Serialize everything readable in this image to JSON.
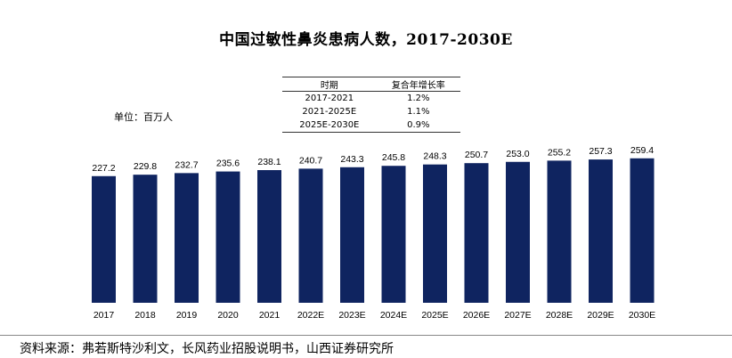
{
  "title": "中国过敏性鼻炎患病人数，2017-2030E",
  "unit_label": "单位：百万人",
  "cagr_table": {
    "headers": [
      "时期",
      "复合年增长率"
    ],
    "rows": [
      {
        "period": "2017-2021",
        "rate": "1.2%"
      },
      {
        "period": "2021-2025E",
        "rate": "1.1%"
      },
      {
        "period": "2025E-2030E",
        "rate": "0.9%"
      }
    ]
  },
  "chart_data": {
    "type": "bar",
    "title": "中国过敏性鼻炎患病人数，2017-2030E",
    "categories": [
      "2017",
      "2018",
      "2019",
      "2020",
      "2021",
      "2022E",
      "2023E",
      "2024E",
      "2025E",
      "2026E",
      "2027E",
      "2028E",
      "2029E",
      "2030E"
    ],
    "values": [
      227.2,
      229.8,
      232.7,
      235.6,
      238.1,
      240.7,
      243.3,
      245.8,
      248.3,
      250.7,
      253.0,
      255.2,
      257.3,
      259.4
    ],
    "value_labels": [
      "227.2",
      "229.8",
      "232.7",
      "235.6",
      "238.1",
      "240.7",
      "243.3",
      "245.8",
      "248.3",
      "250.7",
      "253.0",
      "255.2",
      "257.3",
      "259.4"
    ],
    "ylabel": "单位：百万人",
    "bar_color": "#0f2460",
    "grid": false
  },
  "source": "资料来源：弗若斯特沙利文，长风药业招股说明书，山西证券研究所"
}
